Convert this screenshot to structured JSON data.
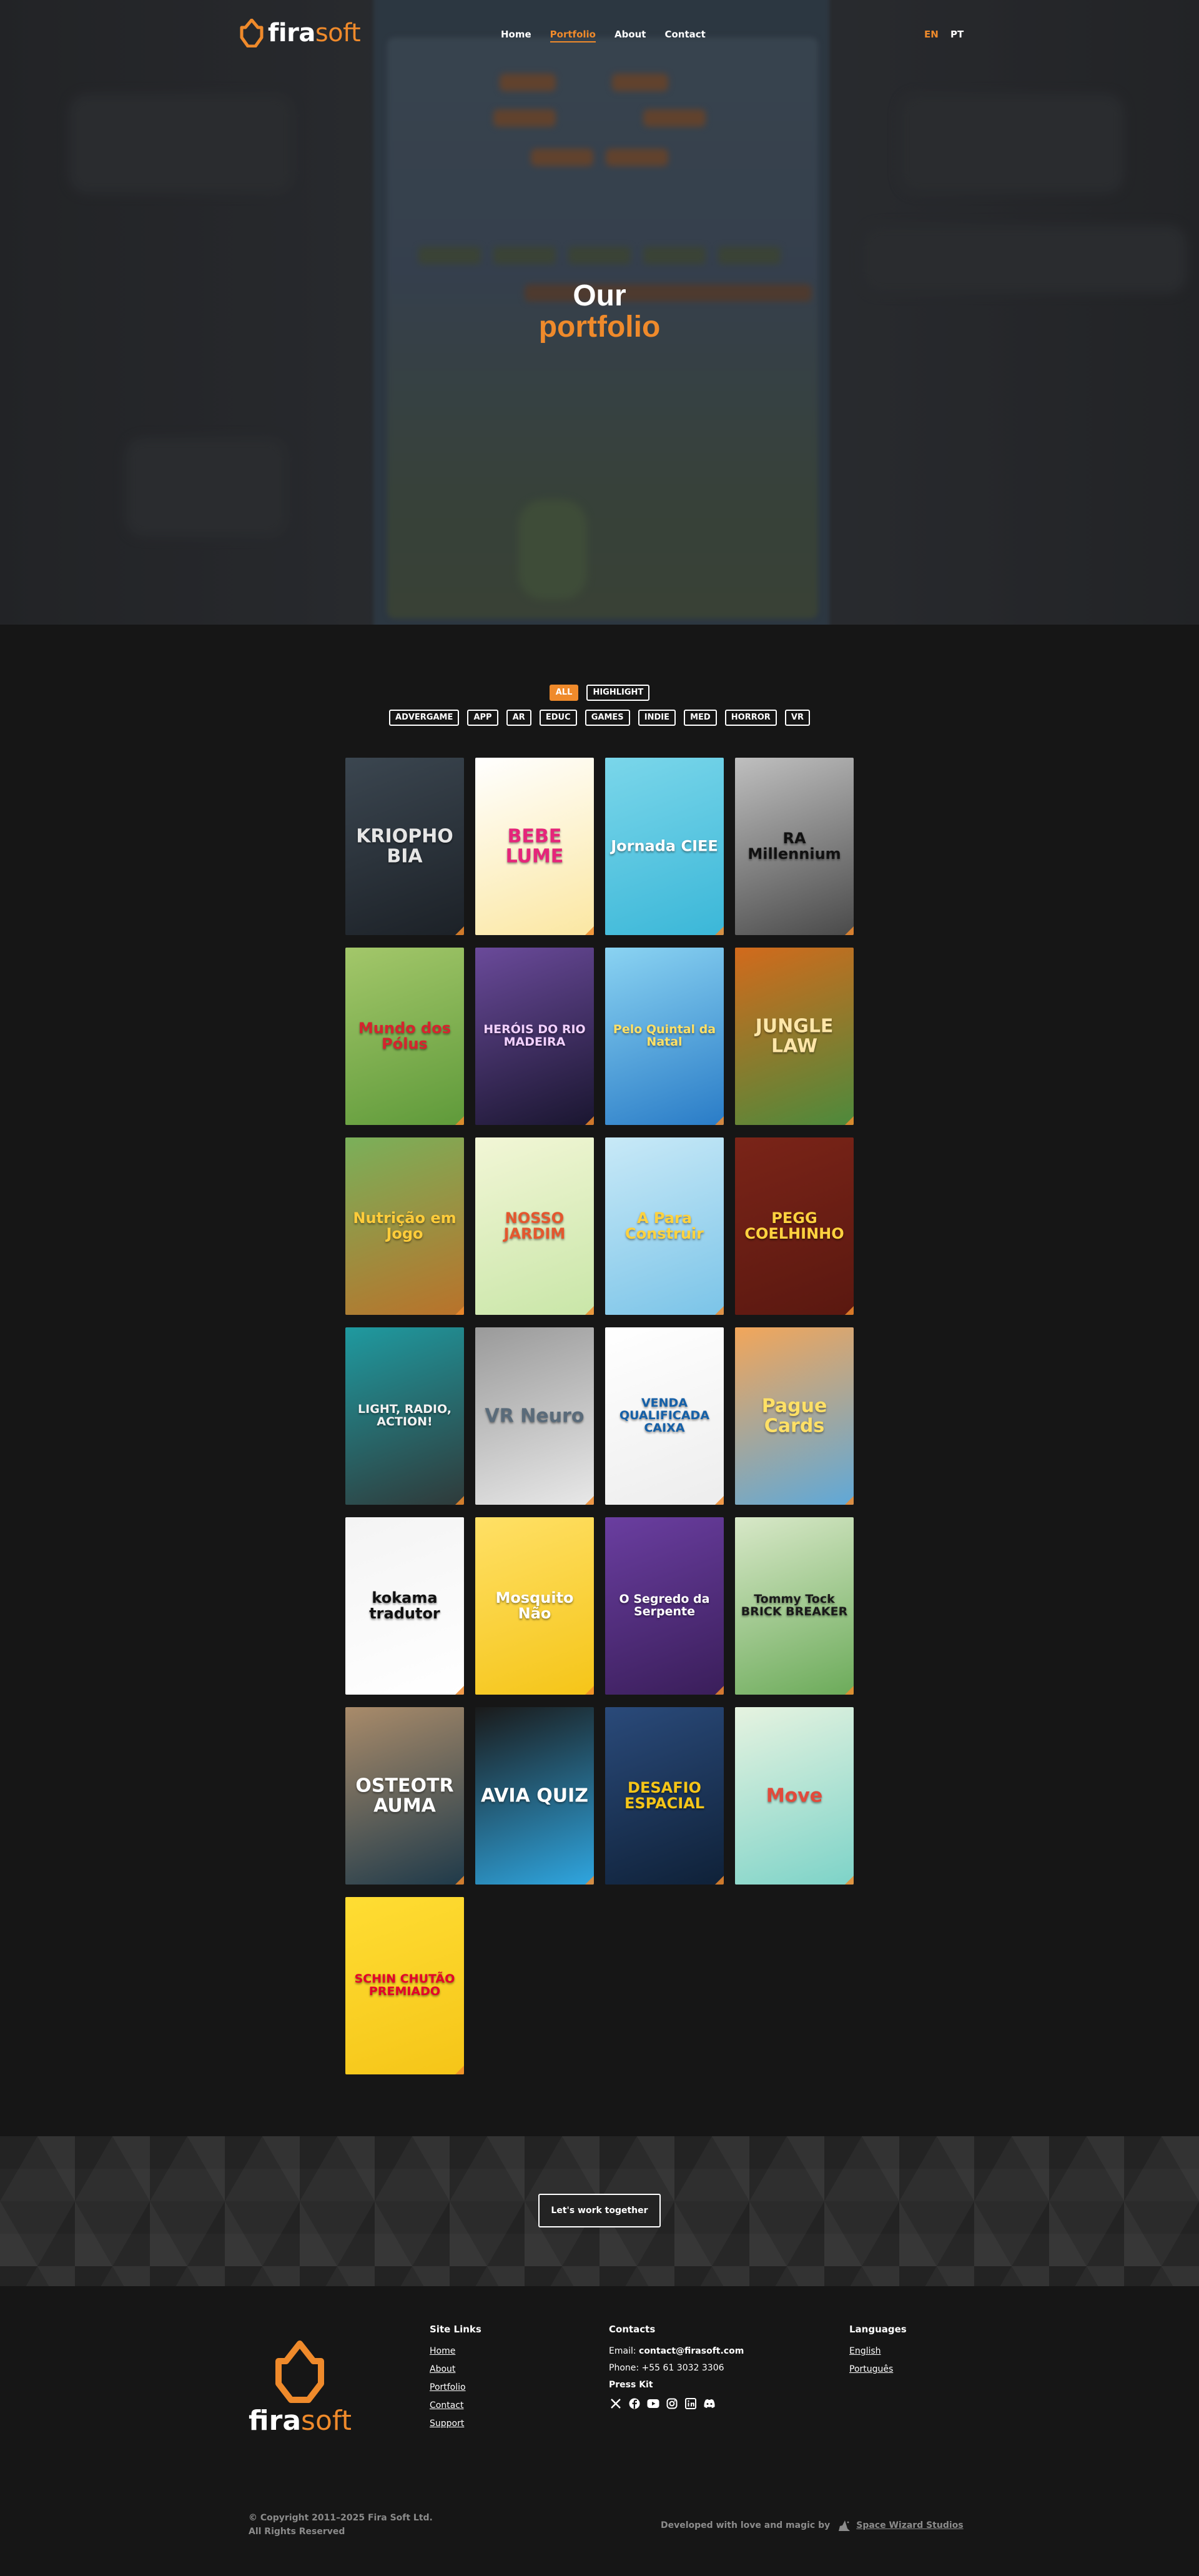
{
  "header": {
    "logo": {
      "name_part1": "fira",
      "name_part2": "soft"
    },
    "nav": [
      {
        "label": "Home",
        "active": false
      },
      {
        "label": "Portfolio",
        "active": true
      },
      {
        "label": "About",
        "active": false
      },
      {
        "label": "Contact",
        "active": false
      }
    ],
    "languages": [
      {
        "label": "EN",
        "active": true
      },
      {
        "label": "PT",
        "active": false
      }
    ]
  },
  "hero": {
    "title_line1": "Our",
    "title_line2": "portfolio"
  },
  "filters": {
    "row1": [
      {
        "label": "ALL",
        "active": true
      },
      {
        "label": "HIGHLIGHT",
        "active": false
      }
    ],
    "row2": [
      {
        "label": "ADVERGAME"
      },
      {
        "label": "APP"
      },
      {
        "label": "AR"
      },
      {
        "label": "EDUC"
      },
      {
        "label": "GAMES"
      },
      {
        "label": "INDIE"
      },
      {
        "label": "MED"
      },
      {
        "label": "HORROR"
      },
      {
        "label": "VR"
      }
    ]
  },
  "portfolio": [
    {
      "title": "KRIOPHOBIA",
      "bg": "#1c2127",
      "bg2": "#3b4650",
      "fg": "#e6e6e6"
    },
    {
      "title": "BEBE LUME",
      "bg": "#fbe7a2",
      "bg2": "#ffffff",
      "fg": "#e5257a"
    },
    {
      "title": "Jornada CIEE",
      "bg": "#3bb7d8",
      "bg2": "#7ad6ea",
      "fg": "#ffffff"
    },
    {
      "title": "RA Millennium",
      "bg": "#4a4a4a",
      "bg2": "#bfbfbf",
      "fg": "#111111"
    },
    {
      "title": "Mundo dos Pólus",
      "bg": "#5f9a3a",
      "bg2": "#a3c76a",
      "fg": "#d5242e"
    },
    {
      "title": "HERÓIS DO RIO MADEIRA",
      "bg": "#1a1630",
      "bg2": "#6a4a9a",
      "fg": "#f2d0ff"
    },
    {
      "title": "Pelo Quintal da Natal",
      "bg": "#2a7cc7",
      "bg2": "#8ad3f2",
      "fg": "#ffe066"
    },
    {
      "title": "JUNGLE LAW",
      "bg": "#4d8a3c",
      "bg2": "#d26a1c",
      "fg": "#ffe6a8"
    },
    {
      "title": "Nutrição em Jogo",
      "bg": "#b9722a",
      "bg2": "#7ab05a",
      "fg": "#ffcc3a"
    },
    {
      "title": "NOSSO JARDIM",
      "bg": "#c9e6a8",
      "bg2": "#f2f6d6",
      "fg": "#e4572e"
    },
    {
      "title": "A Para Construir",
      "bg": "#7bc4e8",
      "bg2": "#c8e9f7",
      "fg": "#ffd23f"
    },
    {
      "title": "PEGG COELHINHO",
      "bg": "#5a1810",
      "bg2": "#7a2418",
      "fg": "#ffd23f"
    },
    {
      "title": "LIGHT, RADIO, ACTION!",
      "bg": "#2f3a3a",
      "bg2": "#1f9aa0",
      "fg": "#f2f2f2"
    },
    {
      "title": "VR Neuro",
      "bg": "#e8e8e8",
      "bg2": "#9a9a9a",
      "fg": "#5a6b7a"
    },
    {
      "title": "VENDA QUALIFICADA CAIXA",
      "bg": "#ededed",
      "bg2": "#ffffff",
      "fg": "#1560a8"
    },
    {
      "title": "Pague Cards",
      "bg": "#5fa8d8",
      "bg2": "#f2a65a",
      "fg": "#ffe066"
    },
    {
      "title": "kokama tradutor",
      "bg": "#ffffff",
      "bg2": "#f4f4f4",
      "fg": "#111111"
    },
    {
      "title": "Mosquito Não",
      "bg": "#f5c518",
      "bg2": "#ffe066",
      "fg": "#ffffff"
    },
    {
      "title": "O Segredo da Serpente",
      "bg": "#3a1e5a",
      "bg2": "#6a3ea0",
      "fg": "#ffffff"
    },
    {
      "title": "Tommy Tock BRICK BREAKER",
      "bg": "#6cab5a",
      "bg2": "#d8e8c8",
      "fg": "#1a1a1a"
    },
    {
      "title": "OSTEOTRAUMA",
      "bg": "#1f3a4a",
      "bg2": "#a98b6a",
      "fg": "#ffffff"
    },
    {
      "title": "AVIA QUIZ",
      "bg": "#2fa6e0",
      "bg2": "#1a1a1a",
      "fg": "#ffffff"
    },
    {
      "title": "DESAFIO ESPACIAL",
      "bg": "#0f2138",
      "bg2": "#2a4a7a",
      "fg": "#f5c518"
    },
    {
      "title": "Move",
      "bg": "#7dd3c8",
      "bg2": "#e6f3e0",
      "fg": "#e24a3b"
    },
    {
      "title": "SCHIN CHUTÃO PREMIADO",
      "bg": "#f5c518",
      "bg2": "#ffdd33",
      "fg": "#e4002b"
    }
  ],
  "cta": {
    "label": "Let's work together"
  },
  "footer": {
    "logo": {
      "name_part1": "fira",
      "name_part2": "soft"
    },
    "site_links": {
      "heading": "Site Links",
      "links": [
        "Home",
        "About",
        "Portfolio",
        "Contact",
        "Support"
      ]
    },
    "contacts": {
      "heading": "Contacts",
      "email_label": "Email:",
      "email": "contact@firasoft.com",
      "phone_label": "Phone:",
      "phone": "+55 61 3032 3306",
      "press_kit": "Press Kit",
      "socials": [
        "x-icon",
        "facebook-icon",
        "youtube-icon",
        "instagram-icon",
        "linkedin-icon",
        "discord-icon"
      ]
    },
    "languages": {
      "heading": "Languages",
      "links": [
        "English",
        "Português"
      ]
    },
    "copyright_line1": "© Copyright 2011–2025 Fira Soft Ltd.",
    "copyright_line2": "All Rights Reserved",
    "developed_by": "Developed with love and magic by",
    "studio": "Space Wizard Studios"
  },
  "colors": {
    "accent": "#ef8a2b",
    "background": "#161616"
  }
}
